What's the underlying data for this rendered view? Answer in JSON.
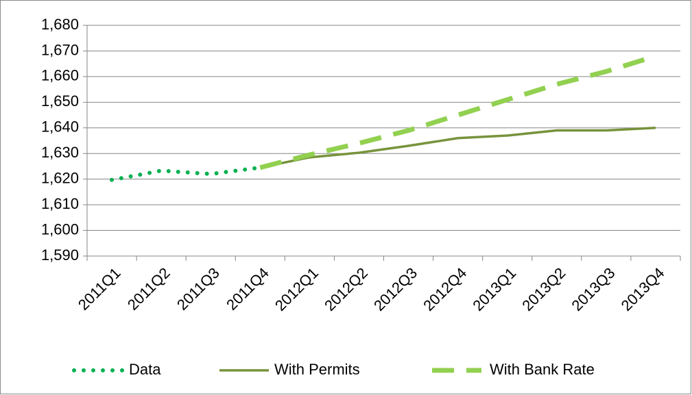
{
  "chart_data": {
    "type": "line",
    "categories": [
      "2011Q1",
      "2011Q2",
      "2011Q3",
      "2011Q4",
      "2012Q1",
      "2012Q2",
      "2012Q3",
      "2012Q4",
      "2013Q1",
      "2013Q2",
      "2013Q3",
      "2013Q4"
    ],
    "series": [
      {
        "name": "Data",
        "color": "#00b050",
        "style": "dotted",
        "values": [
          1619.7,
          1623.3,
          1622.0,
          1624.5,
          null,
          null,
          null,
          null,
          null,
          null,
          null,
          null
        ]
      },
      {
        "name": "With Permits",
        "color": "#77933c",
        "style": "solid",
        "values": [
          null,
          null,
          null,
          1624.5,
          1628.5,
          1630.3,
          1633,
          1636,
          1637,
          1639,
          1639,
          1640
        ]
      },
      {
        "name": "With Bank Rate",
        "color": "#92d050",
        "style": "dashed",
        "values": [
          null,
          null,
          null,
          1624.5,
          1629.5,
          1634,
          1639,
          1645,
          1651,
          1657,
          1662,
          1668
        ]
      }
    ],
    "ylim": [
      1590,
      1680
    ],
    "yticks": [
      {
        "value": 1590,
        "label": "1,590"
      },
      {
        "value": 1600,
        "label": "1,600"
      },
      {
        "value": 1610,
        "label": "1,610"
      },
      {
        "value": 1620,
        "label": "1,620"
      },
      {
        "value": 1630,
        "label": "1,630"
      },
      {
        "value": 1640,
        "label": "1,640"
      },
      {
        "value": 1650,
        "label": "1,650"
      },
      {
        "value": 1660,
        "label": "1,660"
      },
      {
        "value": 1670,
        "label": "1,670"
      },
      {
        "value": 1680,
        "label": "1,680"
      }
    ],
    "grid": true,
    "legend": "bottom"
  }
}
